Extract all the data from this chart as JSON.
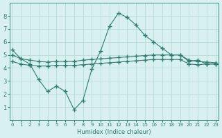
{
  "xlabel": "Humidex (Indice chaleur)",
  "x": [
    0,
    1,
    2,
    3,
    4,
    5,
    6,
    7,
    8,
    9,
    10,
    11,
    12,
    13,
    14,
    15,
    16,
    17,
    18,
    19,
    20,
    21,
    22,
    23
  ],
  "line1": [
    5.4,
    4.7,
    4.3,
    3.1,
    2.2,
    2.6,
    2.2,
    0.8,
    1.5,
    3.9,
    5.3,
    7.2,
    8.2,
    7.9,
    7.3,
    6.5,
    6.0,
    5.5,
    5.0,
    5.0,
    4.5,
    4.6,
    4.3,
    4.3
  ],
  "line2": [
    5.0,
    4.7,
    4.6,
    4.5,
    4.45,
    4.5,
    4.5,
    4.5,
    4.6,
    4.65,
    4.7,
    4.75,
    4.8,
    4.85,
    4.9,
    4.95,
    5.0,
    5.0,
    5.0,
    5.0,
    4.6,
    4.5,
    4.45,
    4.4
  ],
  "line3": [
    4.5,
    4.3,
    4.2,
    4.15,
    4.15,
    4.2,
    4.2,
    4.2,
    4.25,
    4.3,
    4.35,
    4.4,
    4.45,
    4.5,
    4.55,
    4.6,
    4.65,
    4.65,
    4.65,
    4.65,
    4.3,
    4.25,
    4.3,
    4.3
  ],
  "line_color": "#2e7d70",
  "bg_color": "#d8f0ef",
  "grid_color": "#b0d8d4",
  "ylim": [
    0,
    9
  ],
  "xlim": [
    0,
    23
  ],
  "yticks": [
    1,
    2,
    3,
    4,
    5,
    6,
    7,
    8
  ],
  "xticks": [
    0,
    1,
    2,
    3,
    4,
    5,
    6,
    7,
    8,
    9,
    10,
    11,
    12,
    13,
    14,
    15,
    16,
    17,
    18,
    19,
    20,
    21,
    22,
    23
  ]
}
